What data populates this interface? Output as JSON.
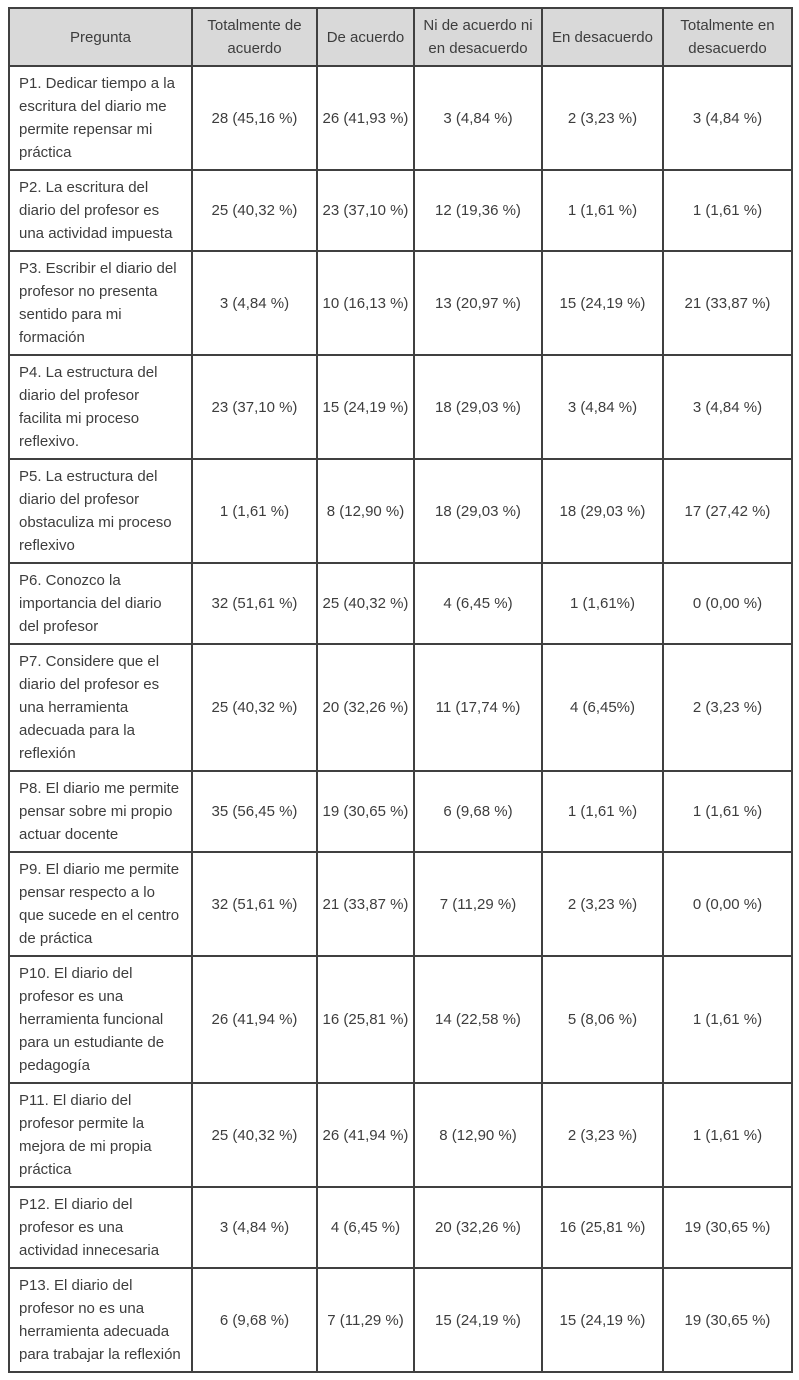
{
  "table": {
    "columns": [
      "Pregunta",
      "Totalmente de acuerdo",
      "De acuerdo",
      "Ni de acuerdo ni en desacuerdo",
      "En desacuerdo",
      "Totalmente en desacuerdo"
    ],
    "rows": [
      {
        "question": "P1. Dedicar tiempo a la escritura del diario me permite repensar mi práctica",
        "cells": [
          "28 (45,16 %)",
          "26 (41,93 %)",
          "3 (4,84 %)",
          "2 (3,23 %)",
          "3 (4,84 %)"
        ]
      },
      {
        "question": "P2. La escritura del diario del profesor es una actividad impuesta",
        "cells": [
          "25 (40,32 %)",
          "23 (37,10 %)",
          "12 (19,36 %)",
          "1 (1,61 %)",
          "1 (1,61 %)"
        ]
      },
      {
        "question": "P3. Escribir el diario del profesor no presenta sentido para mi formación",
        "cells": [
          "3 (4,84 %)",
          "10 (16,13 %)",
          "13 (20,97 %)",
          "15 (24,19 %)",
          "21 (33,87 %)"
        ]
      },
      {
        "question": "P4. La estructura del diario del profesor facilita mi proceso reflexivo.",
        "cells": [
          "23 (37,10 %)",
          "15 (24,19 %)",
          "18 (29,03 %)",
          "3 (4,84 %)",
          "3 (4,84 %)"
        ]
      },
      {
        "question": "P5. La estructura del diario del profesor obstaculiza mi proceso reflexivo",
        "cells": [
          "1 (1,61 %)",
          "8 (12,90 %)",
          "18 (29,03 %)",
          "18 (29,03 %)",
          "17 (27,42 %)"
        ]
      },
      {
        "question": "P6. Conozco la importancia del diario del profesor",
        "cells": [
          "32 (51,61 %)",
          "25 (40,32 %)",
          "4 (6,45 %)",
          "1 (1,61%)",
          "0 (0,00 %)"
        ]
      },
      {
        "question": "P7. Considere que el diario del profesor es una herramienta adecuada para la reflexión",
        "cells": [
          "25 (40,32 %)",
          "20 (32,26 %)",
          "11 (17,74 %)",
          "4 (6,45%)",
          "2 (3,23 %)"
        ]
      },
      {
        "question": "P8. El diario me permite pensar sobre mi propio actuar docente",
        "cells": [
          "35 (56,45 %)",
          "19 (30,65 %)",
          "6 (9,68 %)",
          "1 (1,61 %)",
          "1 (1,61 %)"
        ]
      },
      {
        "question": "P9. El diario me permite pensar respecto a lo que sucede en el centro de práctica",
        "cells": [
          "32 (51,61 %)",
          "21 (33,87 %)",
          "7 (11,29 %)",
          "2 (3,23 %)",
          "0 (0,00 %)"
        ]
      },
      {
        "question": "P10. El diario del profesor es una herramienta funcional para un estudiante de pedagogía",
        "cells": [
          "26 (41,94 %)",
          "16 (25,81 %)",
          "14 (22,58 %)",
          "5 (8,06 %)",
          "1 (1,61 %)"
        ]
      },
      {
        "question": "P11. El diario del profesor permite la mejora de mi propia práctica",
        "cells": [
          "25 (40,32 %)",
          "26 (41,94 %)",
          "8 (12,90 %)",
          "2 (3,23 %)",
          "1 (1,61 %)"
        ]
      },
      {
        "question": "P12. El diario del profesor es una actividad innecesaria",
        "cells": [
          "3 (4,84 %)",
          "4 (6,45 %)",
          "20 (32,26 %)",
          "16 (25,81 %)",
          "19 (30,65 %)"
        ]
      },
      {
        "question": "P13. El diario del profesor no es una herramienta adecuada para trabajar la reflexión",
        "cells": [
          "6 (9,68 %)",
          "7 (11,29 %)",
          "15 (24,19 %)",
          "15 (24,19 %)",
          "19 (30,65 %)"
        ]
      }
    ]
  }
}
